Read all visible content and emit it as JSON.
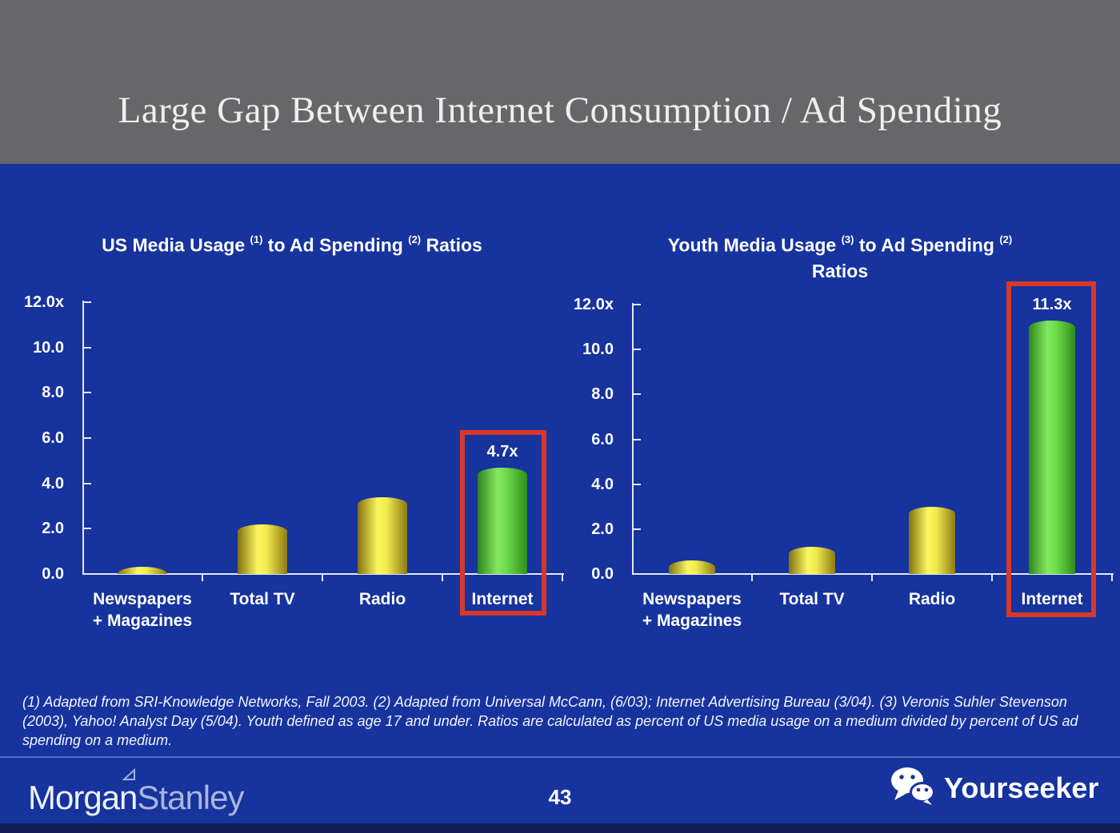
{
  "header": {
    "title": "Large Gap Between Internet Consumption / Ad Spending"
  },
  "colors": {
    "background": "#16339e",
    "header_gray": "#67676a",
    "bar_yellow": "#f2ec4e",
    "bar_green": "#6edc49",
    "highlight_red": "#d5392b",
    "axis": "#e4e8fb"
  },
  "chart_data": [
    {
      "type": "bar",
      "title": "US Media Usage (1) to Ad Spending (2) Ratios",
      "title_lines": [
        [
          {
            "text": "US Media Usage "
          },
          {
            "sup": "(1)"
          },
          {
            "text": " to Ad Spending "
          },
          {
            "sup": "(2)"
          },
          {
            "text": " Ratios"
          }
        ]
      ],
      "categories": [
        [
          "Newspapers",
          "+ Magazines"
        ],
        [
          "Total TV"
        ],
        [
          "Radio"
        ],
        [
          "Internet"
        ]
      ],
      "values": [
        0.3,
        2.2,
        3.4,
        4.7
      ],
      "bar_colors": [
        "yellow",
        "yellow",
        "yellow",
        "green"
      ],
      "annotations": [
        {
          "index": 3,
          "label": "4.7x"
        }
      ],
      "highlight_index": 3,
      "y_ticks": [
        {
          "value": 12,
          "label": "12.0x"
        },
        {
          "value": 10,
          "label": "10.0"
        },
        {
          "value": 8,
          "label": "8.0"
        },
        {
          "value": 6,
          "label": "6.0"
        },
        {
          "value": 4,
          "label": "4.0"
        },
        {
          "value": 2,
          "label": "2.0"
        },
        {
          "value": 0,
          "label": "0.0"
        }
      ],
      "ylim": [
        0,
        12
      ],
      "grid": false,
      "legend": false,
      "xlabel": "",
      "ylabel": ""
    },
    {
      "type": "bar",
      "title": "Youth Media Usage (3) to Ad Spending (2) Ratios",
      "title_lines": [
        [
          {
            "text": "Youth Media Usage "
          },
          {
            "sup": "(3)"
          },
          {
            "text": " to Ad Spending "
          },
          {
            "sup": "(2)"
          }
        ],
        [
          {
            "text": "Ratios"
          }
        ]
      ],
      "categories": [
        [
          "Newspapers",
          "+ Magazines"
        ],
        [
          "Total TV"
        ],
        [
          "Radio"
        ],
        [
          "Internet"
        ]
      ],
      "values": [
        0.6,
        1.2,
        3.0,
        11.3
      ],
      "bar_colors": [
        "yellow",
        "yellow",
        "yellow",
        "green"
      ],
      "annotations": [
        {
          "index": 3,
          "label": "11.3x"
        }
      ],
      "highlight_index": 3,
      "y_ticks": [
        {
          "value": 12,
          "label": "12.0x"
        },
        {
          "value": 10,
          "label": "10.0"
        },
        {
          "value": 8,
          "label": "8.0"
        },
        {
          "value": 6,
          "label": "6.0"
        },
        {
          "value": 4,
          "label": "4.0"
        },
        {
          "value": 2,
          "label": "2.0"
        },
        {
          "value": 0,
          "label": "0.0"
        }
      ],
      "ylim": [
        0,
        12
      ],
      "grid": false,
      "legend": false,
      "xlabel": "",
      "ylabel": ""
    }
  ],
  "footnote": "(1) Adapted from SRI-Knowledge Networks, Fall 2003.  (2) Adapted from Universal McCann, (6/03); Internet Advertising Bureau (3/04). (3) Veronis Suhler Stevenson (2003), Yahoo! Analyst Day (5/04).  Youth defined as age 17 and under.  Ratios are calculated as percent of US media usage on a medium divided by percent of US ad spending on a medium.",
  "footer": {
    "brand_left_part1": "Morgan",
    "brand_left_part2": "Stanley",
    "page_number": "43",
    "brand_right": "Yourseeker"
  }
}
